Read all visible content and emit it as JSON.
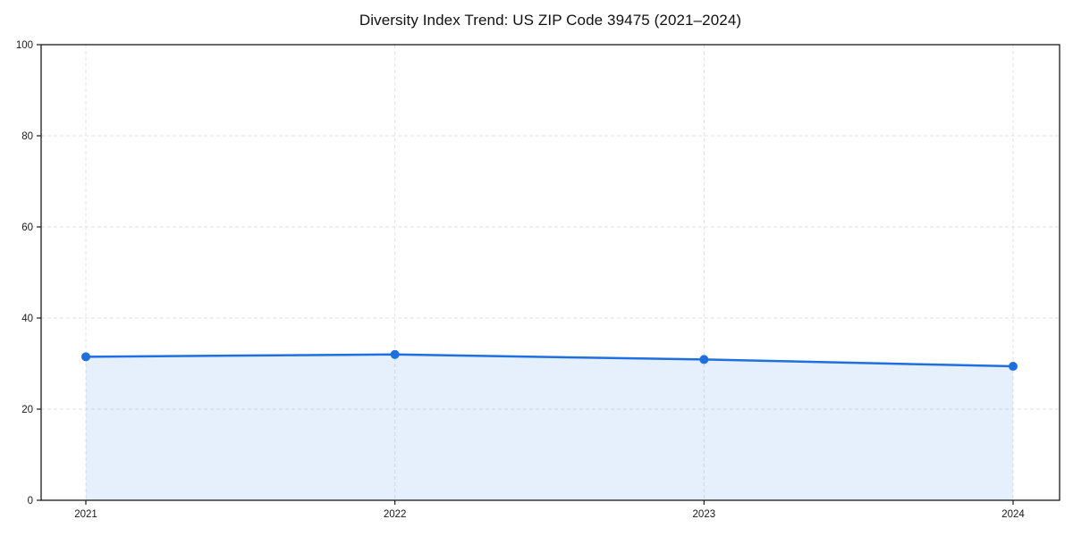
{
  "chart_data": {
    "type": "line",
    "title": "Diversity Index Trend: US ZIP Code 39475 (2021–2024)",
    "x": [
      "2021",
      "2022",
      "2023",
      "2024"
    ],
    "series": [
      {
        "name": "Diversity Index",
        "values": [
          31.5,
          32.0,
          30.9,
          29.4
        ]
      }
    ],
    "xlabel": "",
    "ylabel": "",
    "ylim": [
      0,
      100
    ],
    "yticks": [
      0,
      20,
      40,
      60,
      80,
      100
    ],
    "grid": true,
    "grid_style": "dashed",
    "legend_position": "none",
    "area_fill": true,
    "colors": {
      "line": "#1f6fe0",
      "marker": "#1f6fe0",
      "area": "#1f6fe0",
      "area_opacity": 0.11,
      "grid": "#e2e2e2",
      "spine": "#1a1a1a",
      "background": "#ffffff"
    }
  }
}
